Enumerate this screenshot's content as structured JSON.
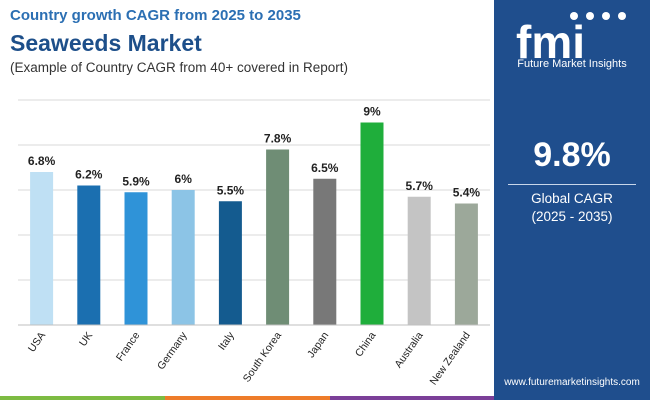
{
  "header": {
    "subtitle": "Country growth CAGR from 2025 to 2035",
    "title": "Seaweeds Market",
    "note": "(Example of Country CAGR from 40+ covered in Report)"
  },
  "panel": {
    "brand": "Future Market Insights",
    "cagr_value": "9.8%",
    "cagr_label": "Global CAGR",
    "cagr_range": "(2025 - 2035)",
    "website": "www.futuremarketinsights.com",
    "logo_letters": "fmi"
  },
  "colors": {
    "panel": "#1f4e8d",
    "bottom_bar": [
      "#7dbb42",
      "#ee7c2a",
      "#7b3f98",
      "#1f4e8d"
    ]
  },
  "chart_data": {
    "type": "bar",
    "title": "Seaweeds Market",
    "xlabel": "",
    "ylabel": "",
    "ylim": [
      0,
      10
    ],
    "grid": true,
    "categories": [
      "USA",
      "UK",
      "France",
      "Germany",
      "Italy",
      "South Korea",
      "Japan",
      "China",
      "Australia",
      "New Zealand"
    ],
    "values": [
      6.8,
      6.2,
      5.9,
      6.0,
      5.5,
      7.8,
      6.5,
      9.0,
      5.7,
      5.4
    ],
    "labels": [
      "6.8%",
      "6.2%",
      "5.9%",
      "6%",
      "5.5%",
      "7.8%",
      "6.5%",
      "9%",
      "5.7%",
      "5.4%"
    ],
    "bar_colors": [
      "#bfe0f4",
      "#1b6fb0",
      "#2f93d8",
      "#8cc4e6",
      "#145b8f",
      "#6f8d75",
      "#787878",
      "#1fae3b",
      "#c4c4c4",
      "#9ca89a"
    ]
  }
}
